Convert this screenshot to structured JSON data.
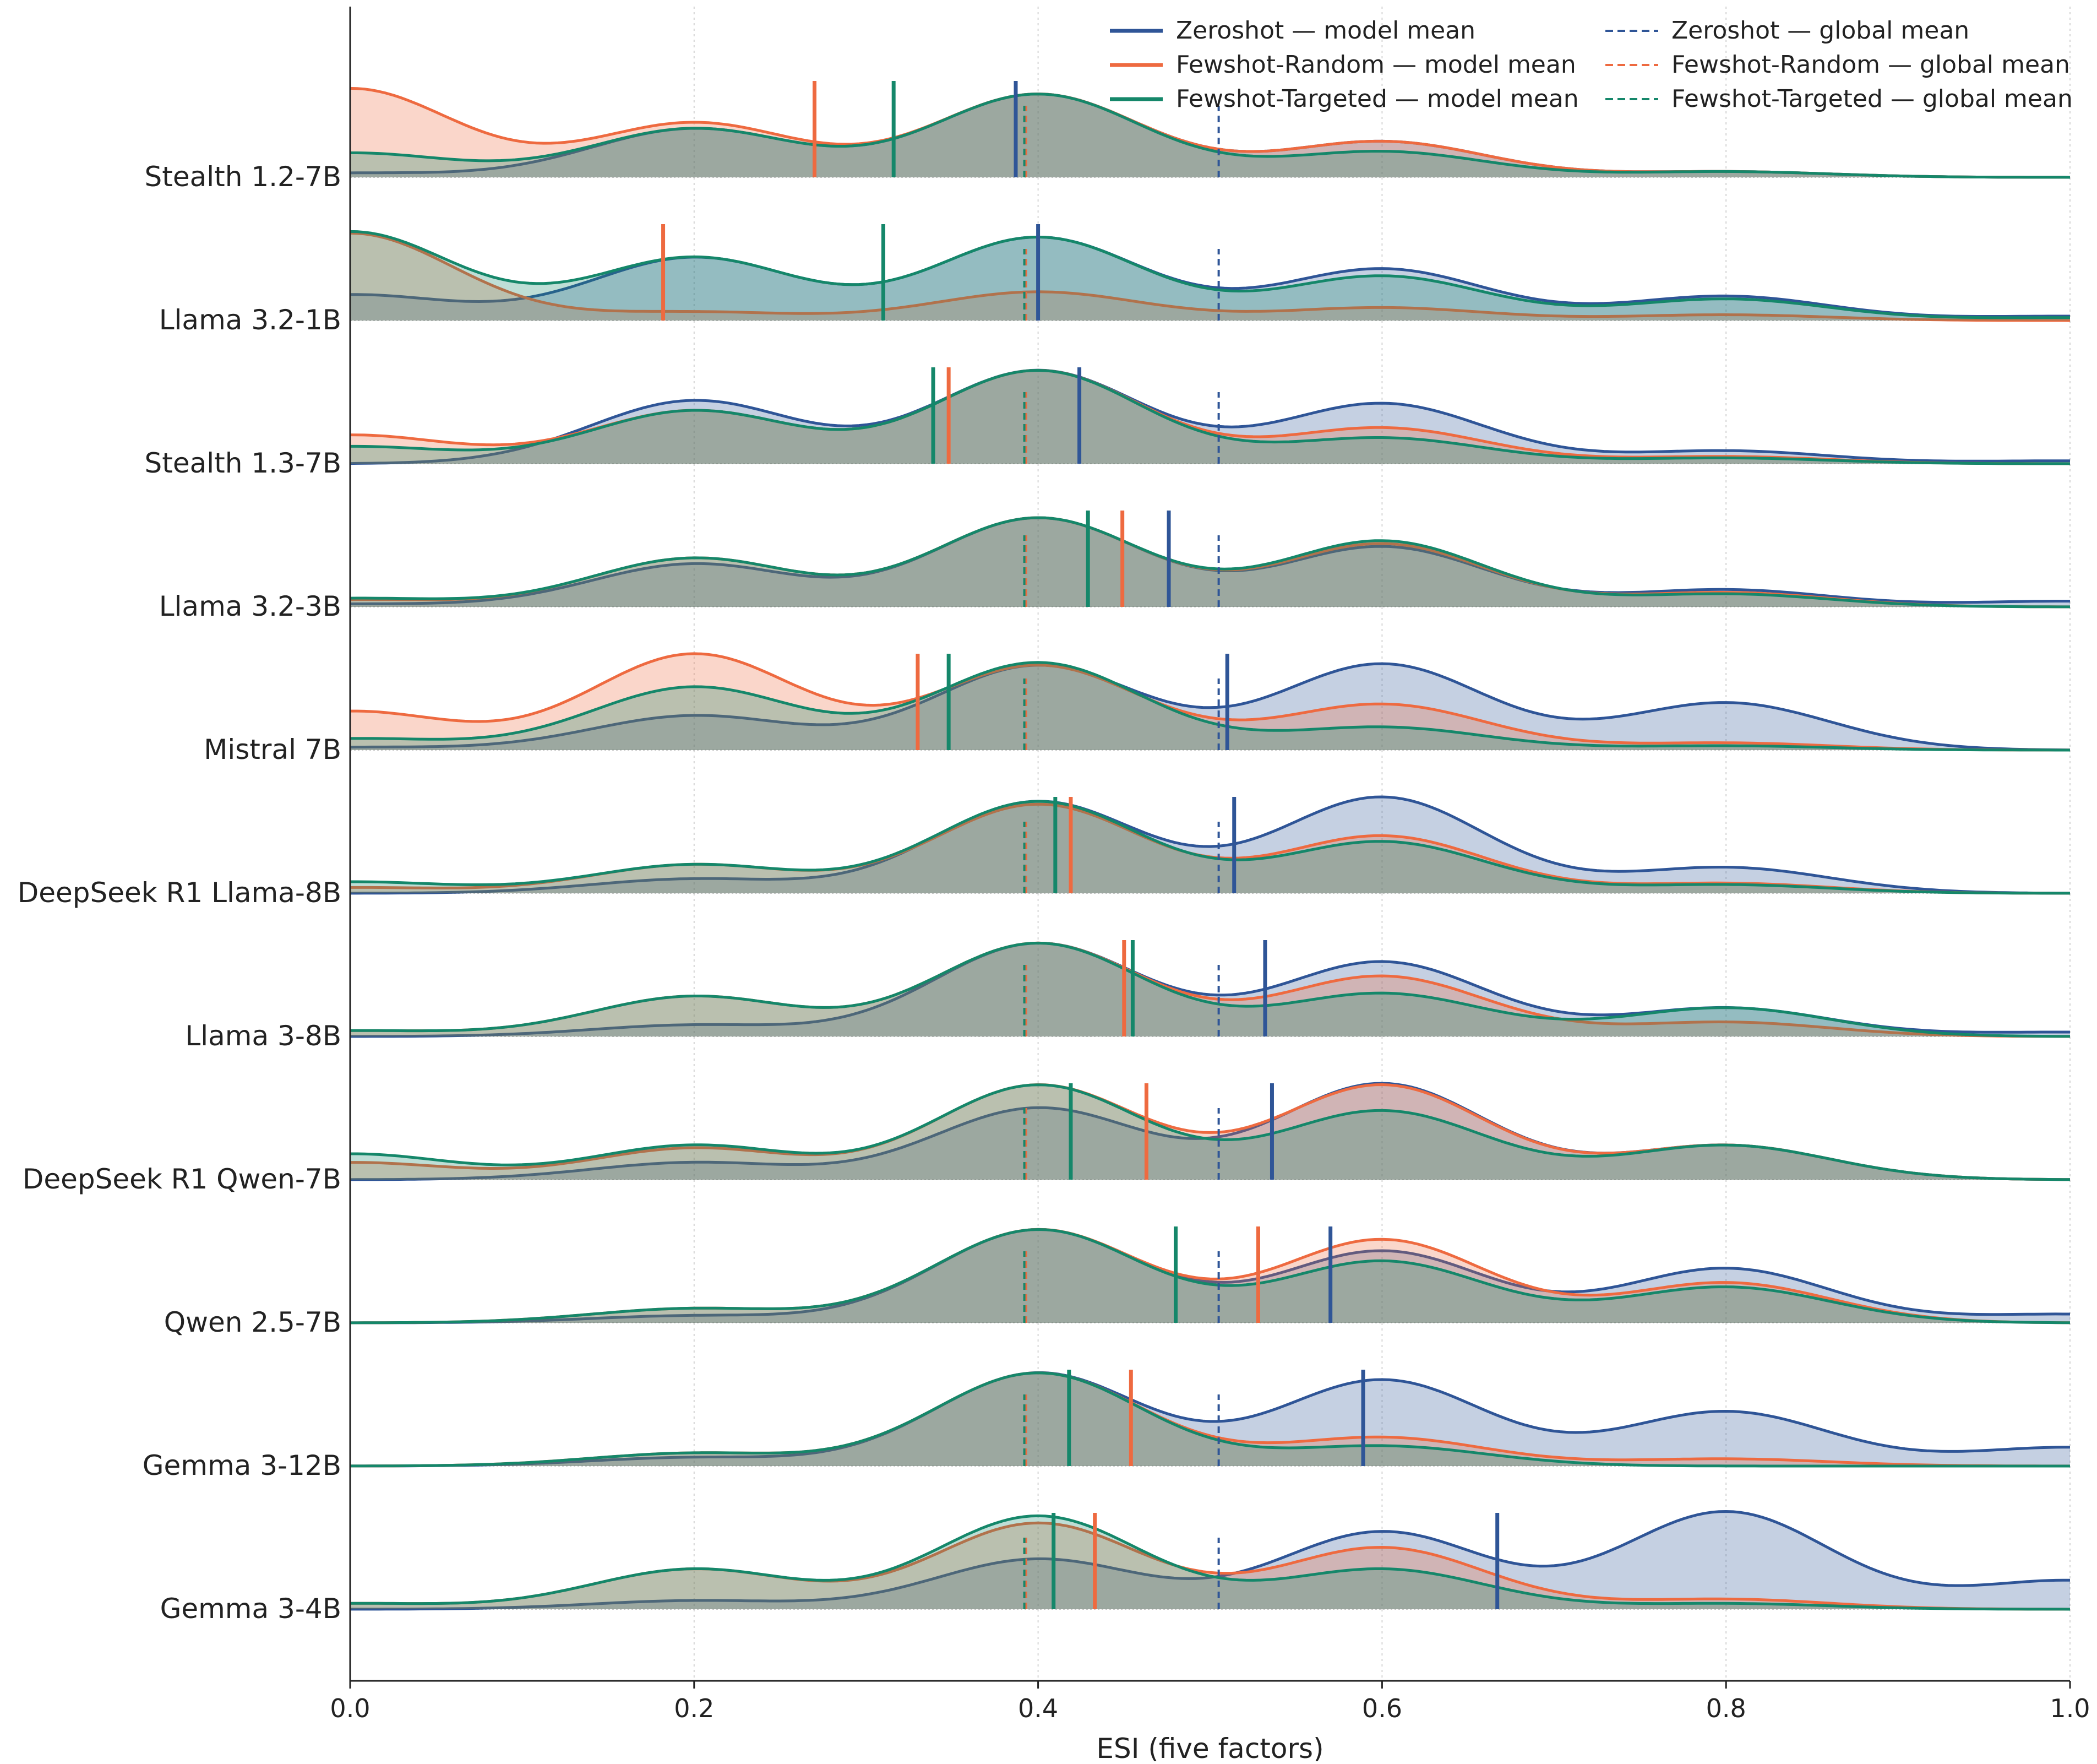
{
  "chart_data": {
    "type": "area",
    "subtype": "ridgeline",
    "title": "",
    "xlabel": "ESI (five factors)",
    "ylabel": "",
    "xlim": [
      0.0,
      1.0
    ],
    "x_ticks": [
      "0.0",
      "0.2",
      "0.4",
      "0.6",
      "0.8",
      "1.0"
    ],
    "grid": "vertical dotted at x ticks",
    "legend_position": "top-right",
    "legend": [
      {
        "label": "Zeroshot — model mean",
        "style": "solid",
        "color": "#2f5597"
      },
      {
        "label": "Fewshot-Random — model mean",
        "style": "solid",
        "color": "#ee6a40"
      },
      {
        "label": "Fewshot-Targeted — model mean",
        "style": "solid",
        "color": "#15876a"
      },
      {
        "label": "Zeroshot — global mean",
        "style": "dashed",
        "color": "#2f5597"
      },
      {
        "label": "Fewshot-Random — global mean",
        "style": "dashed",
        "color": "#ee6a40"
      },
      {
        "label": "Fewshot-Targeted — global mean",
        "style": "dashed",
        "color": "#15876a"
      }
    ],
    "colors": {
      "zeroshot": "#2f5597",
      "fewshot_random": "#ee6a40",
      "fewshot_targeted": "#15876a"
    },
    "global_means": {
      "zeroshot": 0.505,
      "fewshot_random": 0.393,
      "fewshot_targeted": 0.392
    },
    "density_modes": [
      0.0,
      0.2,
      0.4,
      0.6,
      0.8,
      1.0
    ],
    "rows": [
      {
        "label": "Stealth 1.2-7B",
        "means": [
          0.387,
          0.27,
          0.316
        ],
        "amps": [
          [
            0.03,
            0.34,
            0.58,
            0.25,
            0.04,
            0.0
          ],
          [
            0.62,
            0.38,
            0.58,
            0.25,
            0.04,
            0.0
          ],
          [
            0.17,
            0.34,
            0.58,
            0.18,
            0.04,
            0.0
          ]
        ]
      },
      {
        "label": "Llama 3.2-1B",
        "means": [
          0.4,
          0.182,
          0.31
        ],
        "amps": [
          [
            0.18,
            0.44,
            0.58,
            0.36,
            0.17,
            0.03
          ],
          [
            0.61,
            0.06,
            0.2,
            0.09,
            0.04,
            0.0
          ],
          [
            0.62,
            0.44,
            0.58,
            0.31,
            0.15,
            0.02
          ]
        ]
      },
      {
        "label": "Stealth 1.3-7B",
        "means": [
          0.424,
          0.348,
          0.339
        ],
        "amps": [
          [
            0.0,
            0.44,
            0.65,
            0.42,
            0.09,
            0.02
          ],
          [
            0.2,
            0.37,
            0.65,
            0.25,
            0.05,
            0.0
          ],
          [
            0.12,
            0.37,
            0.65,
            0.18,
            0.04,
            0.0
          ]
        ]
      },
      {
        "label": "Llama 3.2-3B",
        "means": [
          0.476,
          0.449,
          0.429
        ],
        "amps": [
          [
            0.02,
            0.3,
            0.62,
            0.42,
            0.12,
            0.04
          ],
          [
            0.05,
            0.34,
            0.62,
            0.44,
            0.1,
            0.0
          ],
          [
            0.06,
            0.34,
            0.62,
            0.46,
            0.09,
            0.0
          ]
        ]
      },
      {
        "label": "Mistral 7B",
        "means": [
          0.51,
          0.33,
          0.348
        ],
        "amps": [
          [
            0.02,
            0.24,
            0.59,
            0.6,
            0.33,
            0.0
          ],
          [
            0.27,
            0.67,
            0.59,
            0.32,
            0.05,
            0.0
          ],
          [
            0.08,
            0.44,
            0.61,
            0.16,
            0.03,
            0.0
          ]
        ]
      },
      {
        "label": "DeepSeek R1 Llama-8B",
        "means": [
          0.514,
          0.419,
          0.41
        ],
        "amps": [
          [
            0.0,
            0.1,
            0.64,
            0.67,
            0.18,
            0.0
          ],
          [
            0.04,
            0.2,
            0.62,
            0.4,
            0.07,
            0.0
          ],
          [
            0.08,
            0.2,
            0.64,
            0.36,
            0.06,
            0.0
          ]
        ]
      },
      {
        "label": "Llama 3-8B",
        "means": [
          0.532,
          0.45,
          0.455
        ],
        "amps": [
          [
            0.0,
            0.08,
            0.65,
            0.52,
            0.2,
            0.03
          ],
          [
            0.04,
            0.28,
            0.65,
            0.42,
            0.1,
            0.0
          ],
          [
            0.04,
            0.28,
            0.65,
            0.3,
            0.2,
            0.0
          ]
        ]
      },
      {
        "label": "DeepSeek R1 Qwen-7B",
        "means": [
          0.536,
          0.463,
          0.419
        ],
        "amps": [
          [
            0.0,
            0.12,
            0.5,
            0.67,
            0.24,
            0.0
          ],
          [
            0.12,
            0.22,
            0.66,
            0.66,
            0.24,
            0.0
          ],
          [
            0.18,
            0.24,
            0.66,
            0.48,
            0.24,
            0.0
          ]
        ]
      },
      {
        "label": "Qwen 2.5-7B",
        "means": [
          0.57,
          0.528,
          0.48
        ],
        "amps": [
          [
            0.0,
            0.05,
            0.65,
            0.5,
            0.38,
            0.06
          ],
          [
            0.0,
            0.1,
            0.65,
            0.58,
            0.28,
            0.0
          ],
          [
            0.0,
            0.1,
            0.65,
            0.43,
            0.25,
            0.0
          ]
        ]
      },
      {
        "label": "Gemma 3-12B",
        "means": [
          0.589,
          0.454,
          0.418
        ],
        "amps": [
          [
            0.0,
            0.06,
            0.65,
            0.6,
            0.38,
            0.13
          ],
          [
            0.0,
            0.09,
            0.65,
            0.2,
            0.05,
            0.0
          ],
          [
            0.0,
            0.09,
            0.65,
            0.14,
            0.0,
            0.0
          ]
        ]
      },
      {
        "label": "Gemma 3-4B",
        "means": [
          0.667,
          0.433,
          0.409
        ],
        "amps": [
          [
            0.0,
            0.06,
            0.35,
            0.54,
            0.68,
            0.2
          ],
          [
            0.04,
            0.28,
            0.6,
            0.43,
            0.07,
            0.0
          ],
          [
            0.04,
            0.28,
            0.65,
            0.28,
            0.04,
            0.0
          ]
        ]
      }
    ]
  }
}
